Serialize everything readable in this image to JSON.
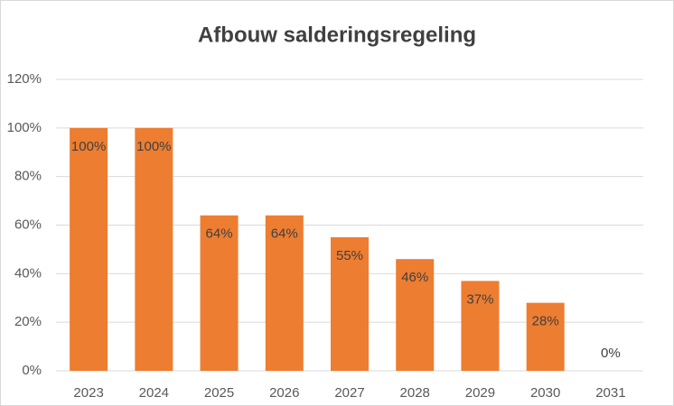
{
  "chart_data": {
    "type": "bar",
    "title": "Afbouw salderingsregeling",
    "categories": [
      "2023",
      "2024",
      "2025",
      "2026",
      "2027",
      "2028",
      "2029",
      "2030",
      "2031"
    ],
    "values": [
      100,
      100,
      64,
      64,
      55,
      46,
      37,
      28,
      0
    ],
    "value_labels": [
      "100%",
      "100%",
      "64%",
      "64%",
      "55%",
      "46%",
      "37%",
      "28%",
      "0%"
    ],
    "color": "#ed7d31",
    "ylim": [
      0,
      120
    ],
    "yticks": [
      {
        "value": 0,
        "label": "0%"
      },
      {
        "value": 20,
        "label": "20%"
      },
      {
        "value": 40,
        "label": "40%"
      },
      {
        "value": 60,
        "label": "60%"
      },
      {
        "value": 80,
        "label": "80%"
      },
      {
        "value": 100,
        "label": "100%"
      },
      {
        "value": 120,
        "label": "120%"
      }
    ],
    "grid": true
  }
}
